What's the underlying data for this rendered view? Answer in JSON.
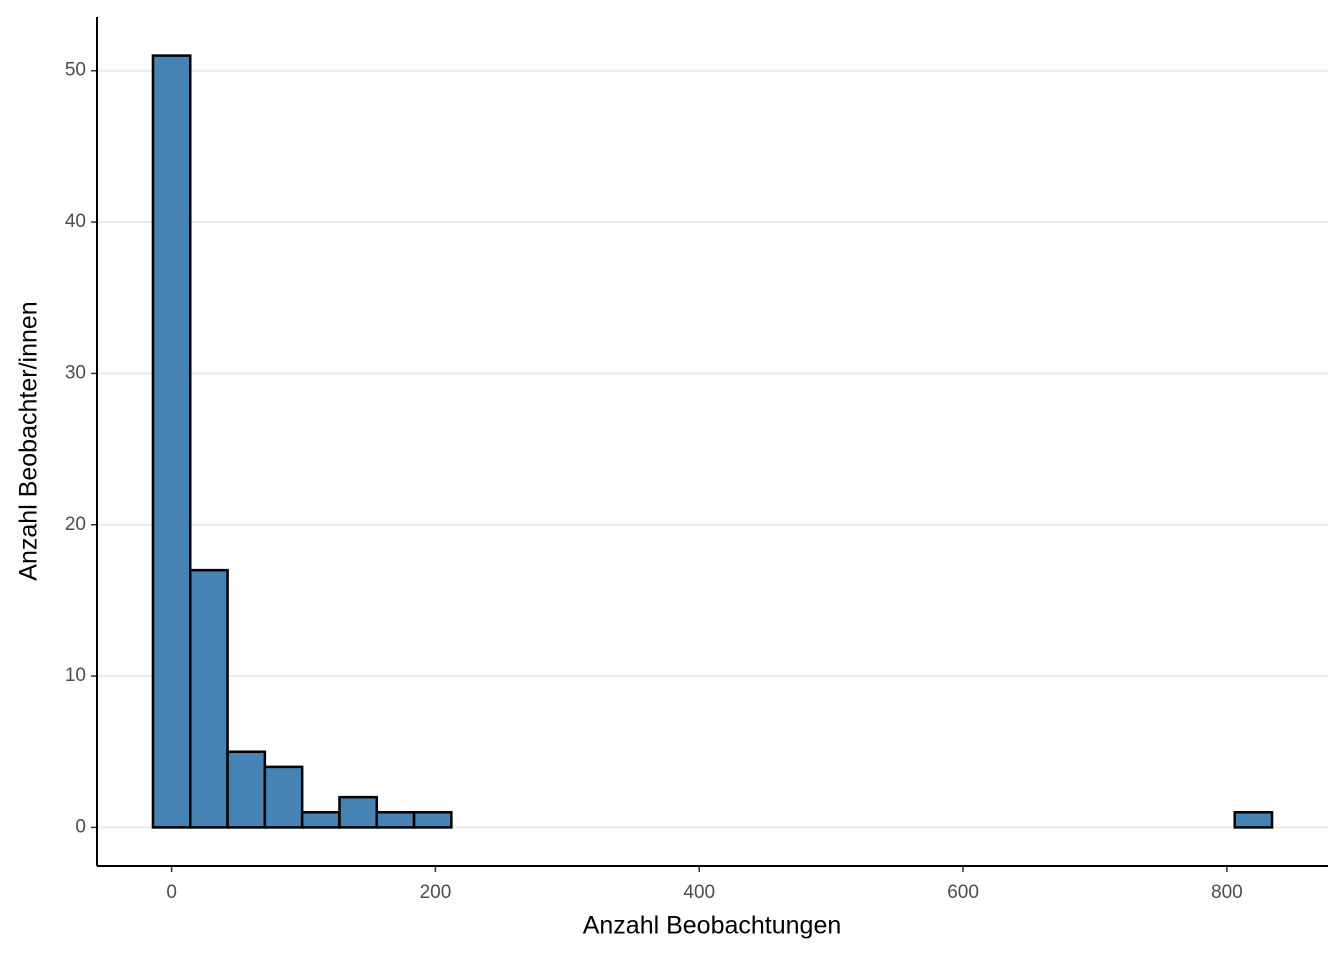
{
  "chart_data": {
    "type": "histogram",
    "x_label": "Anzahl Beobachtungen",
    "y_label": "Anzahl Beobachter/innen",
    "bins": [
      -14.14,
      14.14,
      42.42,
      70.7,
      98.98,
      127.26,
      155.54,
      183.82,
      212.1,
      240.38,
      268.66,
      296.94,
      325.22,
      353.5,
      381.78,
      410.06,
      438.34,
      466.62,
      494.9,
      523.18,
      551.46,
      579.74,
      608.02,
      636.3,
      664.58,
      692.86,
      721.14,
      749.42,
      777.7,
      805.98,
      834.26
    ],
    "values": [
      51,
      17,
      5,
      4,
      1,
      2,
      1,
      1,
      0,
      0,
      0,
      0,
      0,
      0,
      0,
      0,
      0,
      0,
      0,
      0,
      0,
      0,
      0,
      0,
      0,
      0,
      0,
      0,
      0,
      1
    ],
    "color": "#4682b4",
    "xlim": [
      -56.56,
      876.68
    ],
    "xticks": [
      0,
      200,
      400,
      600,
      800
    ],
    "ylim": [
      -2.55,
      53.55
    ],
    "yticks": [
      0,
      10,
      20,
      30,
      40,
      50
    ],
    "grid": true
  }
}
